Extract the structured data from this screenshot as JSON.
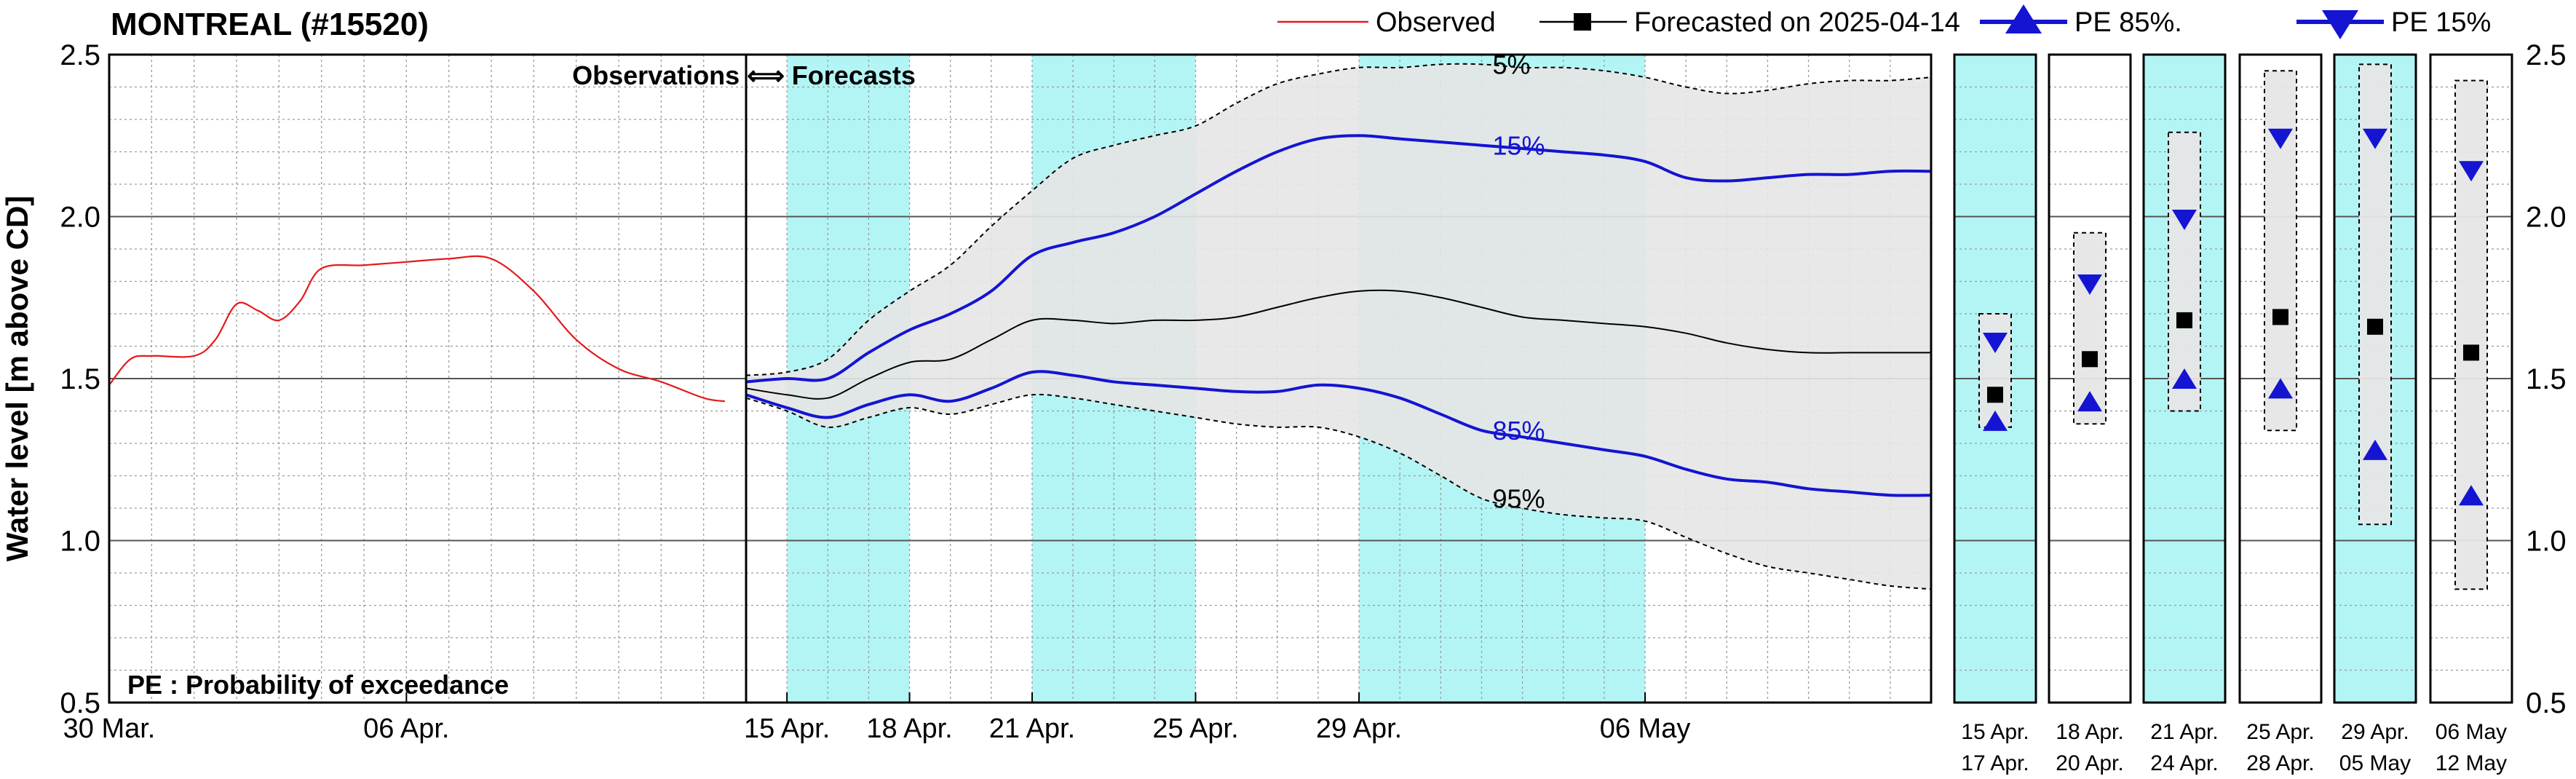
{
  "title": "MONTREAL (#15520)",
  "legend": {
    "observed": "Observed",
    "forecasted": "Forecasted on 2025-04-14",
    "pe85": "PE 85%.",
    "pe15": "PE 15%"
  },
  "annotations": {
    "obs_forecast": "Observations ⟺ Forecasts",
    "pe_note": "PE : Probability of exceedance",
    "p5": "5%",
    "p15": "15%",
    "p85": "85%",
    "p95": "95%"
  },
  "colors": {
    "observed": "#e41a1c",
    "forecast": "#000000",
    "pe": "#1414d2",
    "band": "#e6e6e6",
    "highlight": "#b3f5f5"
  },
  "chart_data": {
    "type": "line",
    "ylabel": "Water level [m above CD]",
    "ylim": [
      0.5,
      2.5
    ],
    "yticks": [
      0.5,
      1.0,
      1.5,
      2.0,
      2.5
    ],
    "ytick_labels": [
      "0.5",
      "1.0",
      "1.5",
      "2.0",
      "2.5"
    ],
    "observed_panel": {
      "xlim": [
        "2025-03-30",
        "2025-04-14"
      ],
      "xtick_labels": [
        {
          "date": "2025-03-30",
          "label": "30 Mar."
        },
        {
          "date": "2025-04-06",
          "label": "06 Apr."
        }
      ],
      "series": [
        {
          "name": "Observed",
          "points": [
            [
              "2025-03-30",
              1.48
            ],
            [
              "2025-03-30T12",
              1.56
            ],
            [
              "2025-03-31",
              1.57
            ],
            [
              "2025-04-01",
              1.57
            ],
            [
              "2025-04-01T12",
              1.62
            ],
            [
              "2025-04-02",
              1.73
            ],
            [
              "2025-04-02T12",
              1.71
            ],
            [
              "2025-04-03",
              1.68
            ],
            [
              "2025-04-03T12",
              1.74
            ],
            [
              "2025-04-04",
              1.84
            ],
            [
              "2025-04-05",
              1.85
            ],
            [
              "2025-04-06",
              1.86
            ],
            [
              "2025-04-07",
              1.87
            ],
            [
              "2025-04-08",
              1.87
            ],
            [
              "2025-04-09",
              1.77
            ],
            [
              "2025-04-10",
              1.62
            ],
            [
              "2025-04-11",
              1.53
            ],
            [
              "2025-04-12",
              1.49
            ],
            [
              "2025-04-13",
              1.44
            ],
            [
              "2025-04-13T12",
              1.43
            ]
          ]
        }
      ]
    },
    "forecast_panel": {
      "xlim": [
        "2025-04-14",
        "2025-05-13"
      ],
      "xtick_labels": [
        {
          "date": "2025-04-15",
          "label": "15 Apr."
        },
        {
          "date": "2025-04-18",
          "label": "18 Apr."
        },
        {
          "date": "2025-04-21",
          "label": "21 Apr."
        },
        {
          "date": "2025-04-25",
          "label": "25 Apr."
        },
        {
          "date": "2025-04-29",
          "label": "29 Apr."
        },
        {
          "date": "2025-05-06",
          "label": "06 May"
        }
      ],
      "highlight_periods": [
        [
          "2025-04-15",
          "2025-04-18"
        ],
        [
          "2025-04-21",
          "2025-04-25"
        ],
        [
          "2025-04-29",
          "2025-05-06"
        ]
      ],
      "series": [
        {
          "name": "Forecasted on 2025-04-14",
          "points": [
            [
              "2025-04-14",
              1.47
            ],
            [
              "2025-04-15",
              1.45
            ],
            [
              "2025-04-16",
              1.44
            ],
            [
              "2025-04-17",
              1.5
            ],
            [
              "2025-04-18",
              1.55
            ],
            [
              "2025-04-19",
              1.56
            ],
            [
              "2025-04-20",
              1.62
            ],
            [
              "2025-04-21",
              1.68
            ],
            [
              "2025-04-22",
              1.68
            ],
            [
              "2025-04-23",
              1.67
            ],
            [
              "2025-04-24",
              1.68
            ],
            [
              "2025-04-25",
              1.68
            ],
            [
              "2025-04-26",
              1.69
            ],
            [
              "2025-04-27",
              1.72
            ],
            [
              "2025-04-28",
              1.75
            ],
            [
              "2025-04-29",
              1.77
            ],
            [
              "2025-04-30",
              1.77
            ],
            [
              "2025-05-01",
              1.75
            ],
            [
              "2025-05-02",
              1.72
            ],
            [
              "2025-05-03",
              1.69
            ],
            [
              "2025-05-04",
              1.68
            ],
            [
              "2025-05-05",
              1.67
            ],
            [
              "2025-05-06",
              1.66
            ],
            [
              "2025-05-07",
              1.64
            ],
            [
              "2025-05-08",
              1.61
            ],
            [
              "2025-05-09",
              1.59
            ],
            [
              "2025-05-10",
              1.58
            ],
            [
              "2025-05-11",
              1.58
            ],
            [
              "2025-05-12",
              1.58
            ],
            [
              "2025-05-13",
              1.58
            ]
          ]
        },
        {
          "name": "15%",
          "points": [
            [
              "2025-04-14",
              1.49
            ],
            [
              "2025-04-15",
              1.5
            ],
            [
              "2025-04-16",
              1.5
            ],
            [
              "2025-04-17",
              1.58
            ],
            [
              "2025-04-18",
              1.65
            ],
            [
              "2025-04-19",
              1.7
            ],
            [
              "2025-04-20",
              1.77
            ],
            [
              "2025-04-21",
              1.88
            ],
            [
              "2025-04-22",
              1.92
            ],
            [
              "2025-04-23",
              1.95
            ],
            [
              "2025-04-24",
              2.0
            ],
            [
              "2025-04-25",
              2.07
            ],
            [
              "2025-04-26",
              2.14
            ],
            [
              "2025-04-27",
              2.2
            ],
            [
              "2025-04-28",
              2.24
            ],
            [
              "2025-04-29",
              2.25
            ],
            [
              "2025-04-30",
              2.24
            ],
            [
              "2025-05-01",
              2.23
            ],
            [
              "2025-05-02",
              2.22
            ],
            [
              "2025-05-03",
              2.21
            ],
            [
              "2025-05-04",
              2.2
            ],
            [
              "2025-05-05",
              2.19
            ],
            [
              "2025-05-06",
              2.17
            ],
            [
              "2025-05-07",
              2.12
            ],
            [
              "2025-05-08",
              2.11
            ],
            [
              "2025-05-09",
              2.12
            ],
            [
              "2025-05-10",
              2.13
            ],
            [
              "2025-05-11",
              2.13
            ],
            [
              "2025-05-12",
              2.14
            ],
            [
              "2025-05-13",
              2.14
            ]
          ]
        },
        {
          "name": "85%",
          "points": [
            [
              "2025-04-14",
              1.45
            ],
            [
              "2025-04-15",
              1.41
            ],
            [
              "2025-04-16",
              1.38
            ],
            [
              "2025-04-17",
              1.42
            ],
            [
              "2025-04-18",
              1.45
            ],
            [
              "2025-04-19",
              1.43
            ],
            [
              "2025-04-20",
              1.47
            ],
            [
              "2025-04-21",
              1.52
            ],
            [
              "2025-04-22",
              1.51
            ],
            [
              "2025-04-23",
              1.49
            ],
            [
              "2025-04-24",
              1.48
            ],
            [
              "2025-04-25",
              1.47
            ],
            [
              "2025-04-26",
              1.46
            ],
            [
              "2025-04-27",
              1.46
            ],
            [
              "2025-04-28",
              1.48
            ],
            [
              "2025-04-29",
              1.47
            ],
            [
              "2025-04-30",
              1.44
            ],
            [
              "2025-05-01",
              1.39
            ],
            [
              "2025-05-02",
              1.34
            ],
            [
              "2025-05-03",
              1.32
            ],
            [
              "2025-05-04",
              1.3
            ],
            [
              "2025-05-05",
              1.28
            ],
            [
              "2025-05-06",
              1.26
            ],
            [
              "2025-05-07",
              1.22
            ],
            [
              "2025-05-08",
              1.19
            ],
            [
              "2025-05-09",
              1.18
            ],
            [
              "2025-05-10",
              1.16
            ],
            [
              "2025-05-11",
              1.15
            ],
            [
              "2025-05-12",
              1.14
            ],
            [
              "2025-05-13",
              1.14
            ]
          ]
        },
        {
          "name": "5%",
          "points": [
            [
              "2025-04-14",
              1.51
            ],
            [
              "2025-04-15",
              1.52
            ],
            [
              "2025-04-16",
              1.56
            ],
            [
              "2025-04-17",
              1.68
            ],
            [
              "2025-04-18",
              1.77
            ],
            [
              "2025-04-19",
              1.85
            ],
            [
              "2025-04-20",
              1.97
            ],
            [
              "2025-04-21",
              2.08
            ],
            [
              "2025-04-22",
              2.18
            ],
            [
              "2025-04-23",
              2.22
            ],
            [
              "2025-04-24",
              2.25
            ],
            [
              "2025-04-25",
              2.28
            ],
            [
              "2025-04-26",
              2.35
            ],
            [
              "2025-04-27",
              2.41
            ],
            [
              "2025-04-28",
              2.44
            ],
            [
              "2025-04-29",
              2.46
            ],
            [
              "2025-04-30",
              2.46
            ],
            [
              "2025-05-01",
              2.47
            ],
            [
              "2025-05-02",
              2.47
            ],
            [
              "2025-05-03",
              2.46
            ],
            [
              "2025-05-04",
              2.46
            ],
            [
              "2025-05-05",
              2.45
            ],
            [
              "2025-05-06",
              2.43
            ],
            [
              "2025-05-07",
              2.4
            ],
            [
              "2025-05-08",
              2.38
            ],
            [
              "2025-05-09",
              2.39
            ],
            [
              "2025-05-10",
              2.41
            ],
            [
              "2025-05-11",
              2.42
            ],
            [
              "2025-05-12",
              2.42
            ],
            [
              "2025-05-13",
              2.43
            ]
          ]
        },
        {
          "name": "95%",
          "points": [
            [
              "2025-04-14",
              1.44
            ],
            [
              "2025-04-15",
              1.4
            ],
            [
              "2025-04-16",
              1.35
            ],
            [
              "2025-04-17",
              1.38
            ],
            [
              "2025-04-18",
              1.41
            ],
            [
              "2025-04-19",
              1.39
            ],
            [
              "2025-04-20",
              1.42
            ],
            [
              "2025-04-21",
              1.45
            ],
            [
              "2025-04-22",
              1.44
            ],
            [
              "2025-04-23",
              1.42
            ],
            [
              "2025-04-24",
              1.4
            ],
            [
              "2025-04-25",
              1.38
            ],
            [
              "2025-04-26",
              1.36
            ],
            [
              "2025-04-27",
              1.35
            ],
            [
              "2025-04-28",
              1.35
            ],
            [
              "2025-04-29",
              1.32
            ],
            [
              "2025-04-30",
              1.27
            ],
            [
              "2025-05-01",
              1.2
            ],
            [
              "2025-05-02",
              1.13
            ],
            [
              "2025-05-03",
              1.1
            ],
            [
              "2025-05-04",
              1.08
            ],
            [
              "2025-05-05",
              1.07
            ],
            [
              "2025-05-06",
              1.06
            ],
            [
              "2025-05-07",
              1.01
            ],
            [
              "2025-05-08",
              0.96
            ],
            [
              "2025-05-09",
              0.92
            ],
            [
              "2025-05-10",
              0.9
            ],
            [
              "2025-05-11",
              0.88
            ],
            [
              "2025-05-12",
              0.86
            ],
            [
              "2025-05-13",
              0.85
            ]
          ]
        }
      ]
    },
    "period_summaries": [
      {
        "label1": "15 Apr.",
        "label2": "17 Apr.",
        "highlight": true,
        "range": [
          1.35,
          1.7
        ],
        "pe15": 1.61,
        "forecast": 1.45,
        "pe85": 1.37
      },
      {
        "label1": "18 Apr.",
        "label2": "20 Apr.",
        "highlight": false,
        "range": [
          1.36,
          1.95
        ],
        "pe15": 1.79,
        "forecast": 1.56,
        "pe85": 1.43
      },
      {
        "label1": "21 Apr.",
        "label2": "24 Apr.",
        "highlight": true,
        "range": [
          1.4,
          2.26
        ],
        "pe15": 1.99,
        "forecast": 1.68,
        "pe85": 1.5
      },
      {
        "label1": "25 Apr.",
        "label2": "28 Apr.",
        "highlight": false,
        "range": [
          1.34,
          2.45
        ],
        "pe15": 2.24,
        "forecast": 1.69,
        "pe85": 1.47
      },
      {
        "label1": "29 Apr.",
        "label2": "05 May",
        "highlight": true,
        "range": [
          1.05,
          2.47
        ],
        "pe15": 2.24,
        "forecast": 1.66,
        "pe85": 1.28
      },
      {
        "label1": "06 May",
        "label2": "12 May",
        "highlight": false,
        "range": [
          0.85,
          2.42
        ],
        "pe15": 2.14,
        "forecast": 1.58,
        "pe85": 1.14
      }
    ]
  }
}
